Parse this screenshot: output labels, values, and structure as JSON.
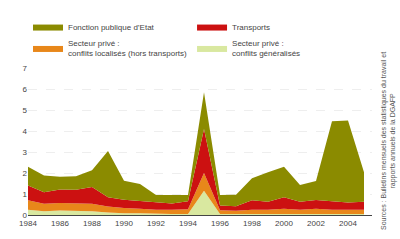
{
  "chart_data": {
    "type": "area",
    "stacked": true,
    "x": [
      1984,
      1985,
      1986,
      1987,
      1988,
      1989,
      1990,
      1991,
      1992,
      1993,
      1994,
      1995,
      1996,
      1997,
      1998,
      1999,
      2000,
      2001,
      2002,
      2003,
      2004,
      2005
    ],
    "series": [
      {
        "name": "Secteur privé :\nconflits généralisés",
        "color": "#d9e8a0",
        "values": [
          0.25,
          0.18,
          0.22,
          0.2,
          0.18,
          0.12,
          0.08,
          0.08,
          0.05,
          0.05,
          0.05,
          1.15,
          0.05,
          0.05,
          0.05,
          0.05,
          0.05,
          0.05,
          0.05,
          0.05,
          0.05,
          0.05
        ]
      },
      {
        "name": "Secteur privé :\nconflits localisés (hors transports)",
        "color": "#e8871a",
        "values": [
          0.45,
          0.35,
          0.35,
          0.35,
          0.35,
          0.28,
          0.25,
          0.22,
          0.2,
          0.2,
          0.22,
          0.85,
          0.18,
          0.15,
          0.2,
          0.2,
          0.25,
          0.2,
          0.25,
          0.2,
          0.2,
          0.2
        ]
      },
      {
        "name": "Transports",
        "color": "#cc1111",
        "values": [
          0.7,
          0.55,
          0.65,
          0.65,
          0.8,
          0.45,
          0.4,
          0.38,
          0.35,
          0.3,
          0.38,
          2.1,
          0.22,
          0.22,
          0.45,
          0.38,
          0.55,
          0.38,
          0.42,
          0.42,
          0.35,
          0.38
        ]
      },
      {
        "name": "Fonction publique d’Etat",
        "color": "#8b8b00",
        "values": [
          0.9,
          0.8,
          0.6,
          0.65,
          0.8,
          2.2,
          0.9,
          0.8,
          0.35,
          0.4,
          0.3,
          1.75,
          0.5,
          0.55,
          1.05,
          1.4,
          1.45,
          0.8,
          0.9,
          3.8,
          3.9,
          1.4
        ]
      }
    ],
    "xlim": [
      1984,
      2005.5
    ],
    "xticks": [
      1984,
      1986,
      1988,
      1990,
      1992,
      1994,
      1996,
      1998,
      2000,
      2002,
      2004
    ],
    "ylim": [
      0,
      7
    ],
    "yticks": [
      0,
      1,
      2,
      3,
      4,
      5,
      6,
      7
    ],
    "grid": true,
    "legend": "top",
    "annotations": [
      "Sources : Bulletins mensuels des statistiques du travail et\nrapports annuels de la DGAFP"
    ]
  }
}
